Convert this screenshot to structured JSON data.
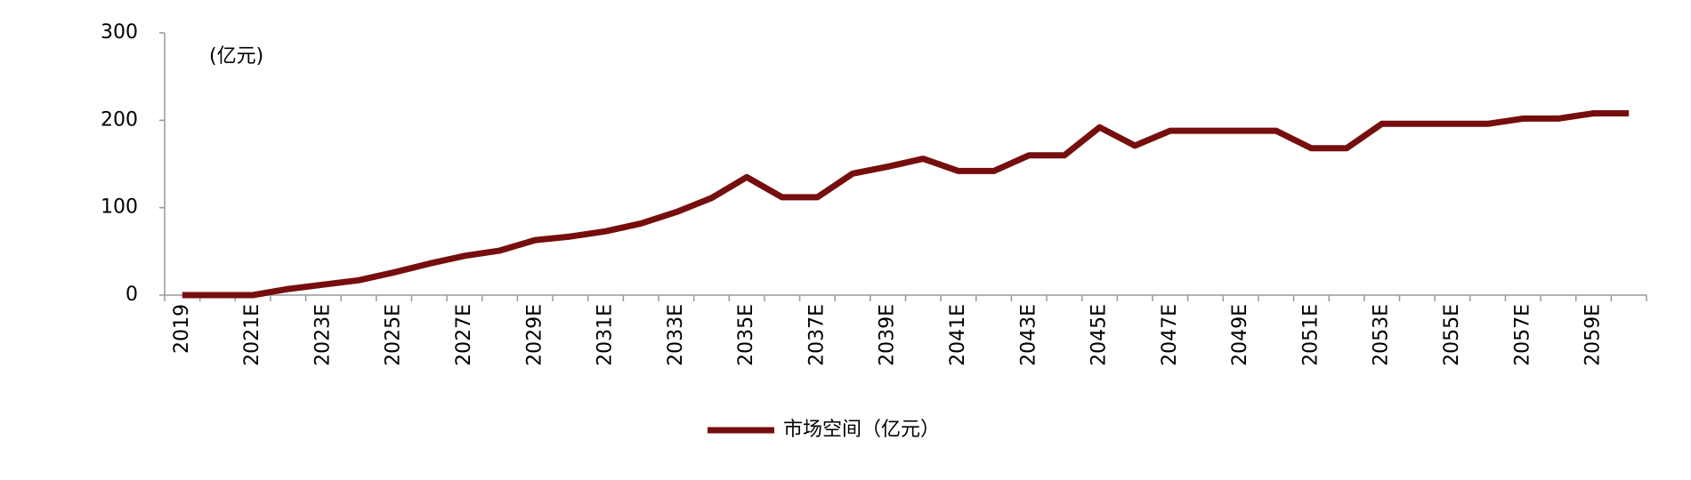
{
  "chart_data": {
    "type": "line",
    "annotation": "(亿元)",
    "categories": [
      "2019",
      null,
      "2021E",
      null,
      "2023E",
      null,
      "2025E",
      null,
      "2027E",
      null,
      "2029E",
      null,
      "2031E",
      null,
      "2033E",
      null,
      "2035E",
      null,
      "2037E",
      null,
      "2039E",
      null,
      "2041E",
      null,
      "2043E",
      null,
      "2045E",
      null,
      "2047E",
      null,
      "2049E",
      null,
      "2051E",
      null,
      "2053E",
      null,
      "2055E",
      null,
      "2057E",
      null,
      "2059E",
      null
    ],
    "series": [
      {
        "name": "市场空间（亿元）",
        "color": "#760e0e",
        "values": [
          0,
          0,
          0,
          7,
          12,
          17,
          26,
          36,
          45,
          51,
          63,
          67,
          73,
          82,
          95,
          111,
          135,
          112,
          112,
          139,
          147,
          156,
          142,
          142,
          160,
          160,
          192,
          171,
          188,
          188,
          188,
          188,
          168,
          168,
          196,
          196,
          196,
          196,
          202,
          202,
          208,
          208
        ]
      }
    ],
    "ylim": [
      0,
      300
    ],
    "yticks": [
      0,
      100,
      200,
      300
    ],
    "grid": false,
    "legend": "bottom"
  }
}
